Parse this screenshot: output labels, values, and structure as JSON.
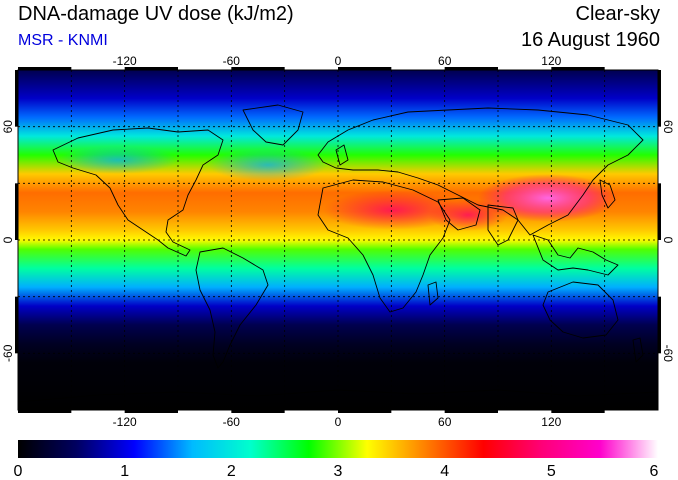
{
  "header": {
    "title": "DNA-damage UV dose (kJ/m2)",
    "source": "MSR - KNMI",
    "condition": "Clear-sky",
    "date": "16 August 1960"
  },
  "map": {
    "lon_range": [
      -180,
      180
    ],
    "lat_range": [
      -90,
      90
    ],
    "lon_ticks": [
      -120,
      -60,
      0,
      60,
      120
    ],
    "lat_ticks": [
      60,
      0,
      -60
    ],
    "lon_tick_labels": [
      "-120",
      "-60",
      "0",
      "60",
      "120"
    ],
    "lat_tick_labels": [
      "60",
      "0",
      "-60"
    ],
    "grid_lines_lat": [
      60,
      30,
      0,
      -30,
      -60
    ],
    "grid_lines_lon": [
      -150,
      -120,
      -90,
      -60,
      -30,
      0,
      30,
      60,
      90,
      120,
      150
    ],
    "grid": "dotted"
  },
  "colorbar": {
    "min": 0,
    "max": 6,
    "tick_values": [
      0,
      1,
      2,
      3,
      4,
      5,
      6
    ],
    "tick_labels": [
      "0",
      "1",
      "2",
      "3",
      "4",
      "5",
      "6"
    ],
    "colors": [
      "#000000",
      "#000060",
      "#0000ff",
      "#00bbff",
      "#00ffcc",
      "#00ff00",
      "#ffff00",
      "#ff8000",
      "#ff0000",
      "#ff0077",
      "#ff00cc",
      "#ffffff"
    ]
  },
  "uv_profile": {
    "latitudes": [
      90,
      75,
      65,
      55,
      45,
      35,
      25,
      15,
      5,
      0,
      -5,
      -15,
      -25,
      -35,
      -45,
      -55,
      -65,
      -90
    ],
    "dose": [
      0.45,
      0.9,
      1.4,
      2.0,
      2.8,
      3.5,
      3.9,
      3.8,
      3.5,
      3.3,
      2.9,
      2.3,
      1.6,
      0.9,
      0.45,
      0.2,
      0.05,
      0.0
    ]
  }
}
